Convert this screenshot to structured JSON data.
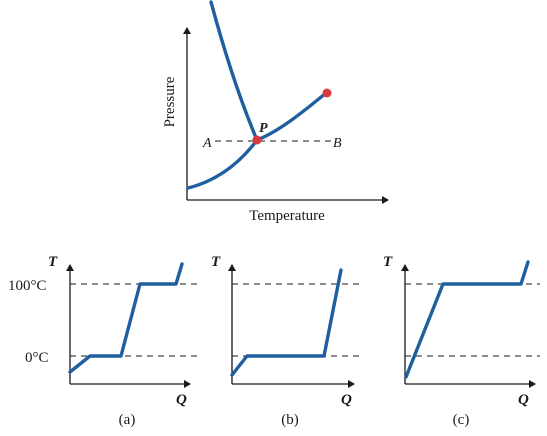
{
  "phase_diagram": {
    "ylabel": "Pressure",
    "xlabel": "Temperature",
    "point_label": "P",
    "line_start_label": "A",
    "line_end_label": "B",
    "curve_color": "#1f5fa0",
    "point_color": "#d93a3a"
  },
  "heating_graphs": {
    "y_axis_label": "T",
    "x_axis_label": "Q",
    "level_high_label": "100°C",
    "level_low_label": "0°C",
    "panels": [
      {
        "caption": "(a)"
      },
      {
        "caption": "(b)"
      },
      {
        "caption": "(c)"
      }
    ]
  }
}
